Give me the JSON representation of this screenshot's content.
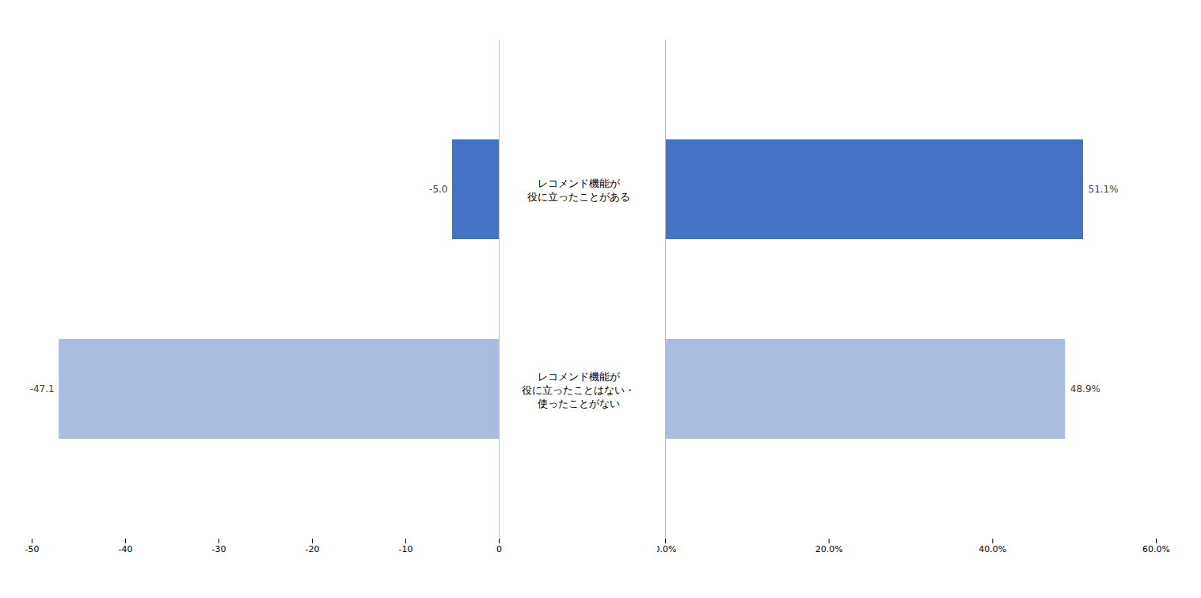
{
  "chart_data": [
    {
      "type": "bar",
      "orientation": "horizontal",
      "categories": [
        "レコメンド機能が\n役に立ったことがある",
        "レコメンド機能が\n役に立ったことはない・\n使ったことがない"
      ],
      "values": [
        -5.0,
        -47.1
      ],
      "value_labels": [
        "-5.0",
        "-47.1"
      ],
      "colors": [
        "#4472C4",
        "#AABCDF"
      ],
      "xlim": [
        -50,
        0
      ],
      "xticks": [
        -50,
        -40,
        -30,
        -20,
        -10,
        0
      ],
      "data_labels": true,
      "grid": false
    },
    {
      "type": "bar",
      "orientation": "horizontal",
      "categories": [
        "レコメンド機能が\n役に立ったことがある",
        "レコメンド機能が\n役に立ったことはない・\n使ったことがない"
      ],
      "values": [
        51.1,
        48.9
      ],
      "value_labels": [
        "51.1%",
        "48.9%"
      ],
      "colors": [
        "#4472C4",
        "#AABCDF"
      ],
      "xlim": [
        0,
        60
      ],
      "xticks": [
        {
          "value": 0,
          "label": "0.0%"
        },
        {
          "value": 20,
          "label": "20.0%"
        },
        {
          "value": 40,
          "label": "40.0%"
        },
        {
          "value": 60,
          "label": "60.0%"
        }
      ],
      "data_labels": true,
      "grid": false,
      "tick_labels": "x"
    }
  ]
}
